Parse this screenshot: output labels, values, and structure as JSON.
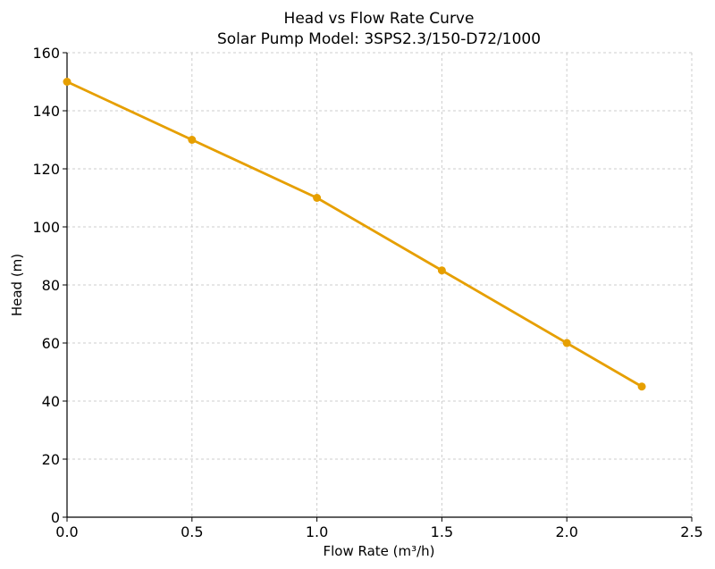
{
  "chart_data": {
    "type": "line",
    "title": "Head vs Flow Rate Curve",
    "subtitle": "Solar Pump Model: 3SPS2.3/150-D72/1000",
    "xlabel": "Flow Rate (m³/h)",
    "ylabel": "Head (m)",
    "xlim": [
      0,
      2.5
    ],
    "ylim": [
      0,
      160
    ],
    "xticks": [
      "0.0",
      "0.5",
      "1.0",
      "1.5",
      "2.0",
      "2.5"
    ],
    "yticks": [
      "0",
      "20",
      "40",
      "60",
      "80",
      "100",
      "120",
      "140",
      "160"
    ],
    "grid": true,
    "color": "#E69F00",
    "series": [
      {
        "x": [
          0,
          0.5,
          1.0,
          1.5,
          2.0,
          2.3
        ],
        "y": [
          150,
          130,
          110,
          85,
          60,
          45
        ]
      }
    ]
  }
}
